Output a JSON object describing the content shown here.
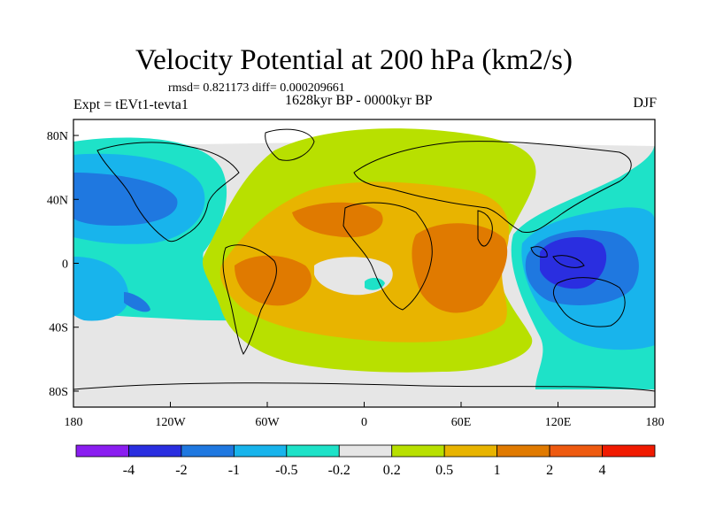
{
  "title": "Velocity Potential at 200 hPa (km2/s)",
  "stats": "rmsd= 0.821173 diff= 0.000209661",
  "experiment": "Expt = tEVt1-tevta1",
  "period": "1628kyr BP - 0000kyr BP",
  "season": "DJF",
  "map": {
    "projection": "cylindrical-equidistant",
    "lon_range": [
      -180,
      180
    ],
    "lat_range": [
      -90,
      90
    ],
    "lon_ticks": [
      "180",
      "120W",
      "60W",
      "0",
      "60E",
      "120E",
      "180"
    ],
    "lat_ticks": [
      "80N",
      "40N",
      "0",
      "40S",
      "80S"
    ]
  },
  "colorbar": {
    "labels": [
      "-4",
      "-2",
      "-1",
      "-0.5",
      "-0.2",
      "0.2",
      "0.5",
      "1",
      "2",
      "4"
    ],
    "colors": [
      "#8a1ef0",
      "#2a2ee0",
      "#1f78e0",
      "#18b4ec",
      "#1ee2c8",
      "#e6e6e6",
      "#b8e000",
      "#e8b400",
      "#e07a00",
      "#ee5a10",
      "#f01a00"
    ]
  }
}
